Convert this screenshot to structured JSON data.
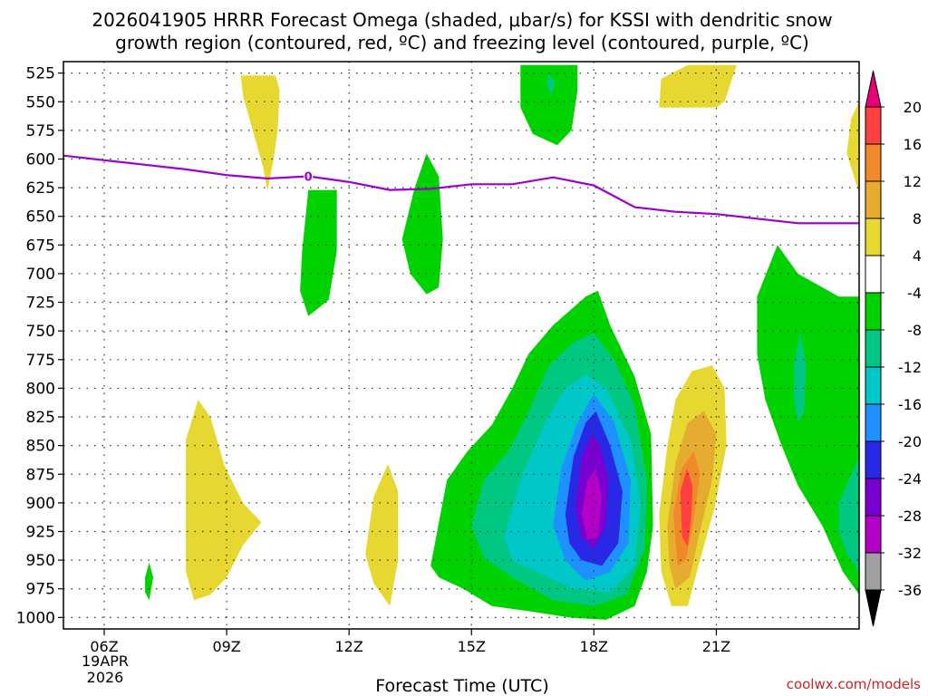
{
  "chart_data": {
    "type": "heatmap",
    "title_line1": "2026041905 HRRR Forecast Omega (shaded, μbar/s) for KSSI with dendritic snow",
    "title_line2": "growth region (contoured, red, ºC) and freezing level (contoured, purple, ºC)",
    "xlabel": "Forecast Time (UTC)",
    "credit": "coolwx.com/models",
    "date_label_1": "19APR",
    "date_label_2": "2026",
    "x_range_hours": [
      5,
      24.5
    ],
    "y_range_hpa": [
      1010,
      515
    ],
    "x_ticks": [
      {
        "hour": 6,
        "label": "06Z"
      },
      {
        "hour": 9,
        "label": "09Z"
      },
      {
        "hour": 12,
        "label": "12Z"
      },
      {
        "hour": 15,
        "label": "15Z"
      },
      {
        "hour": 18,
        "label": "18Z"
      },
      {
        "hour": 21,
        "label": "21Z"
      }
    ],
    "y_ticks": [
      {
        "p": 525,
        "label": "525"
      },
      {
        "p": 550,
        "label": "550"
      },
      {
        "p": 575,
        "label": "575"
      },
      {
        "p": 600,
        "label": "600"
      },
      {
        "p": 625,
        "label": "625"
      },
      {
        "p": 650,
        "label": "650"
      },
      {
        "p": 675,
        "label": "675"
      },
      {
        "p": 700,
        "label": "700"
      },
      {
        "p": 725,
        "label": "725"
      },
      {
        "p": 750,
        "label": "750"
      },
      {
        "p": 775,
        "label": "775"
      },
      {
        "p": 800,
        "label": "800"
      },
      {
        "p": 825,
        "label": "825"
      },
      {
        "p": 850,
        "label": "850"
      },
      {
        "p": 875,
        "label": "875"
      },
      {
        "p": 900,
        "label": "900"
      },
      {
        "p": 925,
        "label": "925"
      },
      {
        "p": 950,
        "label": "950"
      },
      {
        "p": 975,
        "label": "975"
      },
      {
        "p": 1000,
        "label": "1000"
      }
    ],
    "colorbar": [
      {
        "label": "20",
        "color": "#e6007a"
      },
      {
        "label": "16",
        "color": "#ff4040"
      },
      {
        "label": "12",
        "color": "#f08a28"
      },
      {
        "label": "8",
        "color": "#e6ac30"
      },
      {
        "label": "4",
        "color": "#e6d830"
      },
      {
        "label": "-4",
        "color": "#ffffff"
      },
      {
        "label": "-8",
        "color": "#00d200"
      },
      {
        "label": "-12",
        "color": "#00c882"
      },
      {
        "label": "-16",
        "color": "#00c8c8"
      },
      {
        "label": "-20",
        "color": "#1e90ff"
      },
      {
        "label": "-24",
        "color": "#2828e6"
      },
      {
        "label": "-28",
        "color": "#7a00d2"
      },
      {
        "label": "-32",
        "color": "#b400c8"
      },
      {
        "label": "-36",
        "color": "#a0a0a0"
      },
      {
        "label": "",
        "color": "#000000"
      }
    ],
    "freezing_level": {
      "color": "#9b00cc",
      "label": "0",
      "label_hour": 11,
      "points": [
        [
          5,
          597
        ],
        [
          6,
          601
        ],
        [
          7,
          605
        ],
        [
          8,
          609
        ],
        [
          9,
          614
        ],
        [
          10,
          617
        ],
        [
          11,
          615
        ],
        [
          12,
          620
        ],
        [
          13,
          627
        ],
        [
          14,
          626
        ],
        [
          15,
          622
        ],
        [
          16,
          622
        ],
        [
          17,
          616
        ],
        [
          18,
          623
        ],
        [
          19,
          642
        ],
        [
          20,
          646
        ],
        [
          21,
          648
        ],
        [
          22,
          652
        ],
        [
          23,
          656
        ],
        [
          24.5,
          656
        ]
      ]
    },
    "terrain_color": "#a0522d",
    "terrain": [
      [
        5,
        1011
      ],
      [
        9,
        1010
      ],
      [
        10,
        1011
      ],
      [
        14,
        1011
      ],
      [
        17,
        1010
      ],
      [
        18,
        1011
      ],
      [
        21,
        1010
      ],
      [
        22,
        1011
      ],
      [
        24.5,
        1011
      ]
    ],
    "regions": [
      {
        "fill": "#e6d830",
        "pts": [
          [
            9.35,
            527
          ],
          [
            10.2,
            527
          ],
          [
            10.3,
            540
          ],
          [
            10.25,
            575
          ],
          [
            10.15,
            600
          ],
          [
            10.0,
            628
          ],
          [
            9.9,
            608
          ],
          [
            9.6,
            570
          ],
          [
            9.4,
            545
          ]
        ]
      },
      {
        "fill": "#e6d830",
        "pts": [
          [
            8.0,
            845
          ],
          [
            8.3,
            810
          ],
          [
            8.6,
            825
          ],
          [
            8.95,
            868
          ],
          [
            9.4,
            900
          ],
          [
            9.85,
            917
          ],
          [
            9.4,
            937
          ],
          [
            9.0,
            965
          ],
          [
            8.6,
            980
          ],
          [
            8.2,
            985
          ],
          [
            8.0,
            960
          ]
        ]
      },
      {
        "fill": "#e6d830",
        "pts": [
          [
            12.4,
            945
          ],
          [
            12.6,
            895
          ],
          [
            12.95,
            866
          ],
          [
            13.2,
            890
          ],
          [
            13.2,
            950
          ],
          [
            13.0,
            990
          ],
          [
            12.6,
            970
          ]
        ]
      },
      {
        "fill": "#00d200",
        "pts": [
          [
            7.0,
            965
          ],
          [
            7.1,
            952
          ],
          [
            7.2,
            965
          ],
          [
            7.1,
            985
          ],
          [
            7.0,
            978
          ]
        ]
      },
      {
        "fill": "#00d200",
        "pts": [
          [
            10.85,
            680
          ],
          [
            11.0,
            627
          ],
          [
            11.7,
            627
          ],
          [
            11.7,
            680
          ],
          [
            11.5,
            723
          ],
          [
            11.0,
            737
          ],
          [
            10.8,
            715
          ]
        ]
      },
      {
        "fill": "#00d200",
        "pts": [
          [
            13.3,
            670
          ],
          [
            13.6,
            626
          ],
          [
            13.9,
            595
          ],
          [
            14.2,
            615
          ],
          [
            14.3,
            670
          ],
          [
            14.2,
            712
          ],
          [
            13.9,
            718
          ],
          [
            13.5,
            700
          ]
        ]
      },
      {
        "fill": "#00d200",
        "pts": [
          [
            16.2,
            518
          ],
          [
            17.6,
            518
          ],
          [
            17.6,
            540
          ],
          [
            17.45,
            575
          ],
          [
            17.1,
            588
          ],
          [
            16.5,
            578
          ],
          [
            16.2,
            555
          ]
        ]
      },
      {
        "fill": "#00c882",
        "pts": [
          [
            16.9,
            525
          ],
          [
            17.05,
            533
          ],
          [
            16.95,
            545
          ],
          [
            16.85,
            535
          ]
        ]
      },
      {
        "fill": "#e6d830",
        "pts": [
          [
            20.3,
            518
          ],
          [
            21.5,
            518
          ],
          [
            21.2,
            550
          ],
          [
            21.0,
            555
          ],
          [
            19.6,
            555
          ],
          [
            19.65,
            530
          ]
        ]
      },
      {
        "fill": "#e6d830",
        "pts": [
          [
            24.5,
            550
          ],
          [
            24.5,
            630
          ],
          [
            24.2,
            595
          ],
          [
            24.3,
            565
          ]
        ]
      },
      {
        "fill": "#00d200",
        "pts": [
          [
            14.0,
            955
          ],
          [
            14.4,
            880
          ],
          [
            14.9,
            855
          ],
          [
            15.5,
            832
          ],
          [
            16.0,
            800
          ],
          [
            16.4,
            770
          ],
          [
            17.0,
            745
          ],
          [
            17.8,
            720
          ],
          [
            18.1,
            715
          ],
          [
            18.4,
            745
          ],
          [
            19.0,
            790
          ],
          [
            19.4,
            840
          ],
          [
            19.45,
            920
          ],
          [
            19.3,
            960
          ],
          [
            19.0,
            990
          ],
          [
            18.3,
            1002
          ],
          [
            17.4,
            1000
          ],
          [
            16.5,
            995
          ],
          [
            15.5,
            990
          ],
          [
            14.8,
            975
          ],
          [
            14.2,
            965
          ]
        ]
      },
      {
        "fill": "#00c882",
        "pts": [
          [
            15.0,
            920
          ],
          [
            15.3,
            880
          ],
          [
            15.9,
            855
          ],
          [
            16.4,
            820
          ],
          [
            16.9,
            780
          ],
          [
            17.5,
            760
          ],
          [
            18.0,
            752
          ],
          [
            18.5,
            775
          ],
          [
            19.0,
            815
          ],
          [
            19.3,
            880
          ],
          [
            19.25,
            940
          ],
          [
            18.8,
            980
          ],
          [
            18.0,
            990
          ],
          [
            17.0,
            985
          ],
          [
            16.0,
            965
          ],
          [
            15.3,
            948
          ]
        ]
      },
      {
        "fill": "#00c8c8",
        "pts": [
          [
            15.8,
            930
          ],
          [
            16.2,
            880
          ],
          [
            16.8,
            830
          ],
          [
            17.3,
            800
          ],
          [
            17.8,
            788
          ],
          [
            18.3,
            800
          ],
          [
            18.9,
            845
          ],
          [
            19.15,
            900
          ],
          [
            19.0,
            955
          ],
          [
            18.4,
            978
          ],
          [
            17.5,
            975
          ],
          [
            16.6,
            960
          ],
          [
            16.0,
            950
          ]
        ]
      },
      {
        "fill": "#1e90ff",
        "pts": [
          [
            17.0,
            920
          ],
          [
            17.2,
            870
          ],
          [
            17.6,
            830
          ],
          [
            18.0,
            805
          ],
          [
            18.5,
            830
          ],
          [
            18.9,
            880
          ],
          [
            18.85,
            935
          ],
          [
            18.4,
            960
          ],
          [
            17.8,
            968
          ],
          [
            17.3,
            950
          ]
        ]
      },
      {
        "fill": "#2828e6",
        "pts": [
          [
            17.3,
            910
          ],
          [
            17.5,
            860
          ],
          [
            17.8,
            830
          ],
          [
            18.05,
            820
          ],
          [
            18.4,
            850
          ],
          [
            18.7,
            890
          ],
          [
            18.6,
            935
          ],
          [
            18.2,
            955
          ],
          [
            17.7,
            950
          ],
          [
            17.4,
            935
          ]
        ]
      },
      {
        "fill": "#7a00d2",
        "pts": [
          [
            17.55,
            905
          ],
          [
            17.7,
            860
          ],
          [
            17.95,
            840
          ],
          [
            18.15,
            850
          ],
          [
            18.35,
            880
          ],
          [
            18.3,
            920
          ],
          [
            18.0,
            940
          ],
          [
            17.7,
            930
          ]
        ]
      },
      {
        "fill": "#b400c8",
        "pts": [
          [
            17.7,
            910
          ],
          [
            17.85,
            880
          ],
          [
            18.05,
            870
          ],
          [
            18.2,
            895
          ],
          [
            18.1,
            930
          ],
          [
            17.85,
            932
          ]
        ]
      },
      {
        "fill": "#e6d830",
        "pts": [
          [
            19.6,
            910
          ],
          [
            19.8,
            850
          ],
          [
            20.0,
            810
          ],
          [
            20.4,
            785
          ],
          [
            20.9,
            780
          ],
          [
            21.2,
            800
          ],
          [
            21.25,
            850
          ],
          [
            20.95,
            905
          ],
          [
            20.6,
            950
          ],
          [
            20.3,
            990
          ],
          [
            19.9,
            990
          ],
          [
            19.65,
            960
          ]
        ]
      },
      {
        "fill": "#e6ac30",
        "pts": [
          [
            19.8,
            920
          ],
          [
            20.0,
            865
          ],
          [
            20.3,
            830
          ],
          [
            20.7,
            820
          ],
          [
            21.0,
            840
          ],
          [
            20.9,
            880
          ],
          [
            20.6,
            925
          ],
          [
            20.35,
            965
          ],
          [
            20.0,
            975
          ],
          [
            19.85,
            955
          ]
        ]
      },
      {
        "fill": "#f08a28",
        "pts": [
          [
            19.95,
            910
          ],
          [
            20.15,
            870
          ],
          [
            20.45,
            855
          ],
          [
            20.6,
            875
          ],
          [
            20.45,
            915
          ],
          [
            20.25,
            950
          ],
          [
            20.05,
            955
          ]
        ]
      },
      {
        "fill": "#ff4040",
        "pts": [
          [
            20.12,
            890
          ],
          [
            20.28,
            870
          ],
          [
            20.42,
            885
          ],
          [
            20.38,
            915
          ],
          [
            20.3,
            938
          ],
          [
            20.16,
            930
          ]
        ]
      },
      {
        "fill": "#00d200",
        "pts": [
          [
            22.0,
            720
          ],
          [
            22.5,
            675
          ],
          [
            23.0,
            700
          ],
          [
            24.0,
            720
          ],
          [
            24.5,
            720
          ],
          [
            24.5,
            980
          ],
          [
            24.1,
            960
          ],
          [
            23.6,
            920
          ],
          [
            23.0,
            885
          ],
          [
            22.6,
            850
          ],
          [
            22.2,
            810
          ],
          [
            22.0,
            770
          ]
        ]
      },
      {
        "fill": "#00c882",
        "pts": [
          [
            22.9,
            780
          ],
          [
            23.05,
            750
          ],
          [
            23.2,
            780
          ],
          [
            23.15,
            820
          ],
          [
            23.0,
            830
          ],
          [
            22.9,
            810
          ]
        ]
      },
      {
        "fill": "#00c882",
        "pts": [
          [
            24.0,
            900
          ],
          [
            24.5,
            860
          ],
          [
            24.5,
            960
          ],
          [
            24.2,
            945
          ],
          [
            24.0,
            925
          ]
        ]
      }
    ]
  }
}
